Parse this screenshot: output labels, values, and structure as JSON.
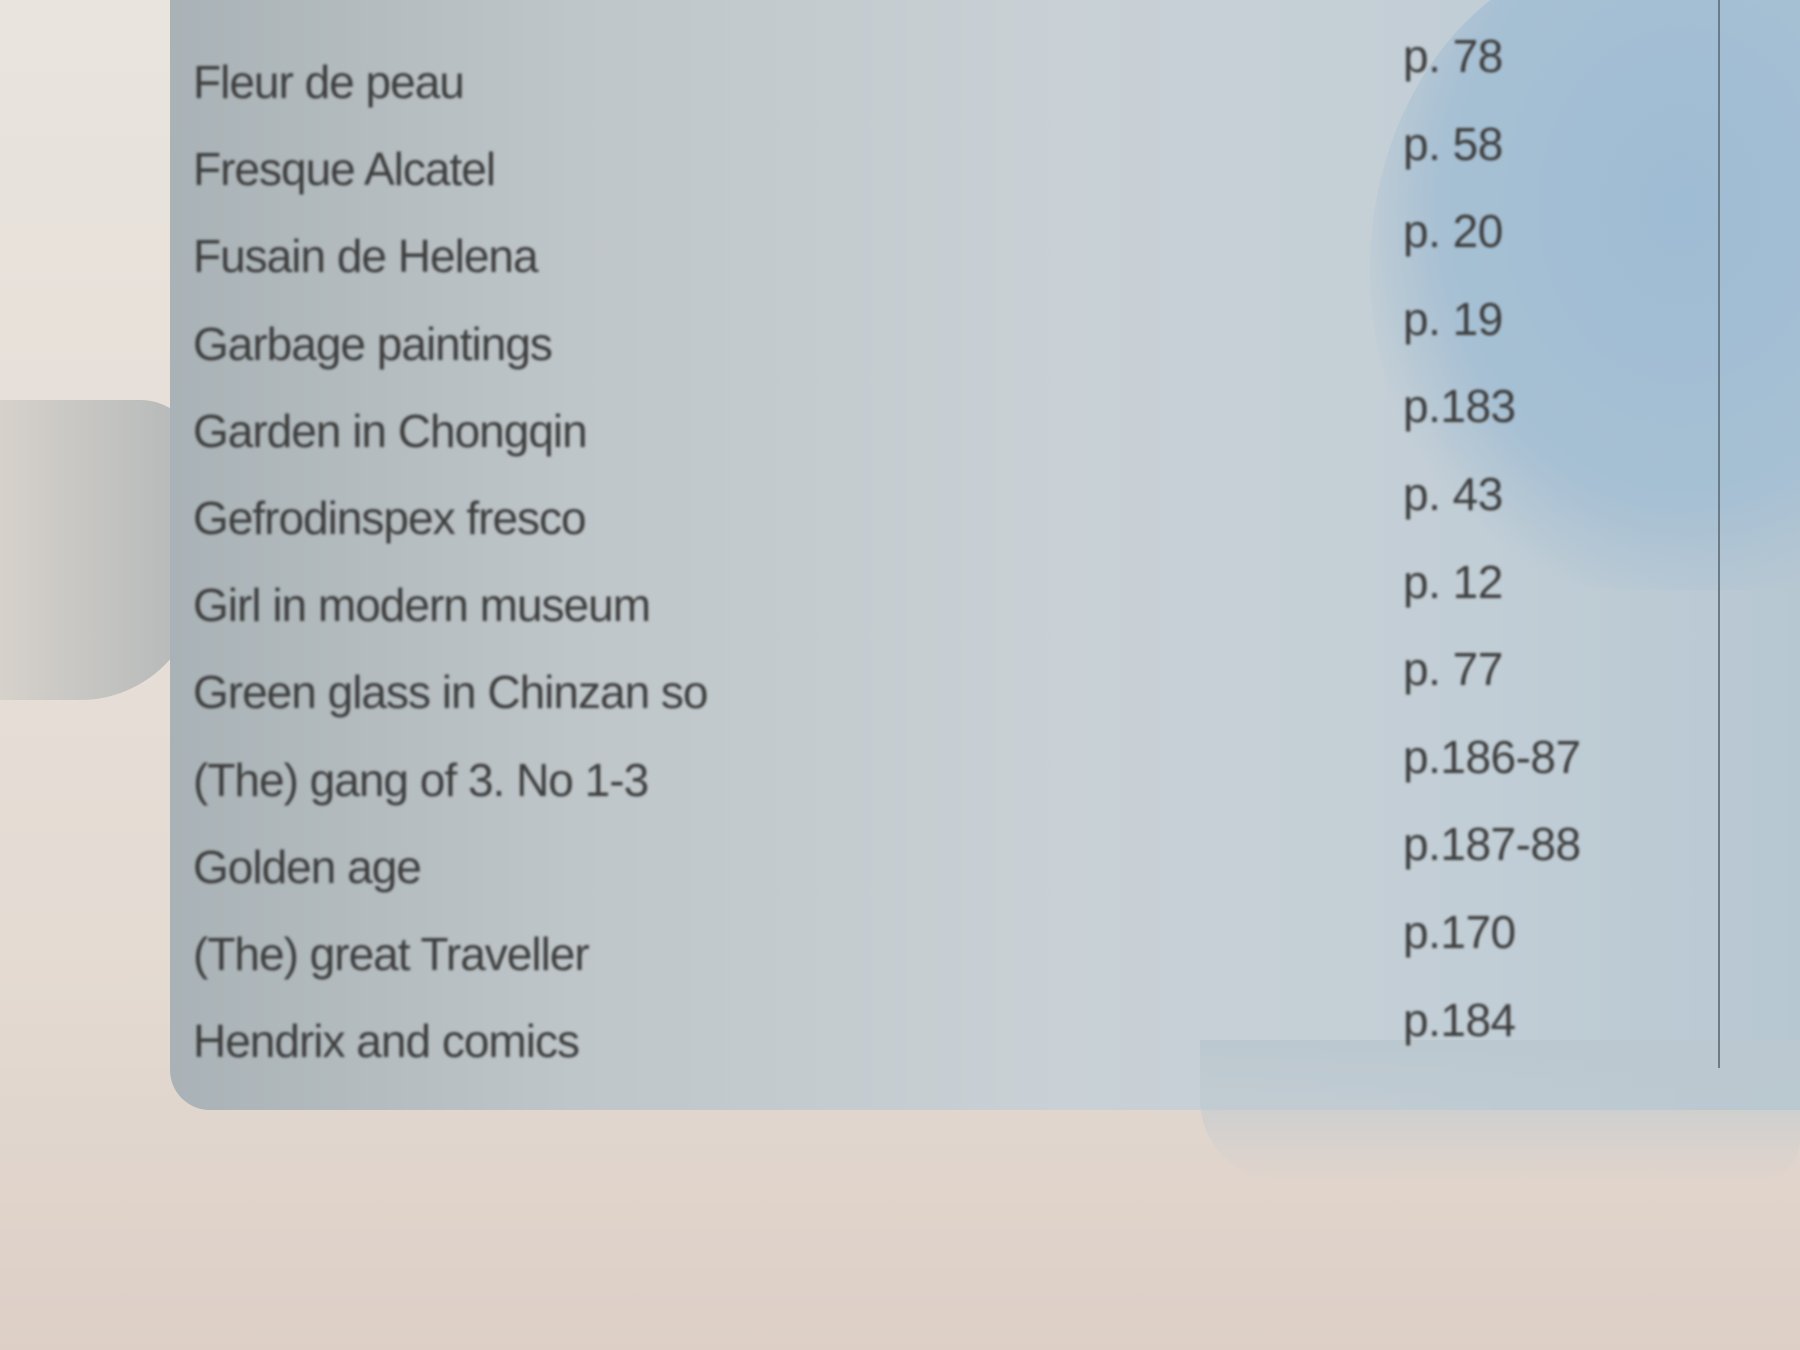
{
  "index": {
    "entries": [
      {
        "title": "Fleur de peau",
        "page": "p. 78"
      },
      {
        "title": "Fresque Alcatel",
        "page": "p. 58"
      },
      {
        "title": "Fusain de Helena",
        "page": "p. 20"
      },
      {
        "title": "Garbage paintings",
        "page": "p. 19"
      },
      {
        "title": "Garden in Chongqin",
        "page": "p.183"
      },
      {
        "title": "Gefrodinspex fresco",
        "page": "p. 43"
      },
      {
        "title": "Girl in modern museum",
        "page": "p. 12"
      },
      {
        "title": "Green glass in Chinzan so",
        "page": "p. 77"
      },
      {
        "title": "(The) gang of 3. No 1-3",
        "page": "p.186-87"
      },
      {
        "title": "Golden age",
        "page": "p.187-88"
      },
      {
        "title": "(The) great Traveller",
        "page": "p.170"
      },
      {
        "title": "Hendrix and comics",
        "page": "p.184"
      }
    ]
  }
}
